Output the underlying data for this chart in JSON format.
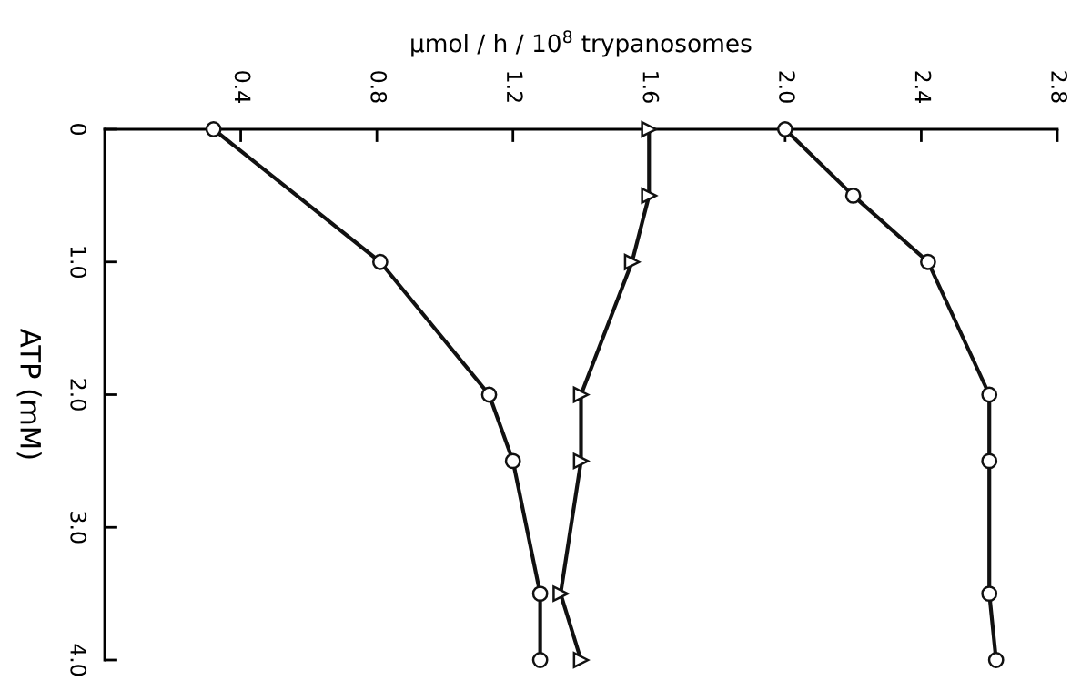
{
  "chart_data": {
    "type": "line",
    "orientation": "horizontal",
    "xlabel": "μmol / h / 10$^{8}$ trypanosomes",
    "ylabel": "ATP (mM)",
    "xlim": [
      0,
      2.8
    ],
    "xticks": [
      0.4,
      0.8,
      1.2,
      1.6,
      {
        "value": 2.0,
        "label": "2.0"
      },
      2.4,
      2.8
    ],
    "ylim": [
      4.0,
      0
    ],
    "yticks": [
      0,
      {
        "value": 1,
        "label": "1.0"
      },
      {
        "value": 2,
        "label": "2.0"
      },
      {
        "value": 3,
        "label": "3.0"
      },
      {
        "value": 4,
        "label": "4.0"
      }
    ],
    "grid": false,
    "legend": false,
    "line_style": "solid",
    "series": [
      {
        "color": "#111111",
        "marker": "circle",
        "x": [
          0,
          1,
          2,
          2.5,
          3.5,
          4
        ],
        "values": [
          0.32,
          0.81,
          1.13,
          1.2,
          1.28,
          1.28
        ]
      },
      {
        "color": "#111111",
        "marker": "triangle",
        "x": [
          0,
          0.5,
          1,
          2,
          2.5,
          3.5,
          4
        ],
        "values": [
          1.6,
          1.6,
          1.55,
          1.4,
          1.4,
          1.34,
          1.4
        ]
      },
      {
        "color": "#111111",
        "marker": "circle",
        "x": [
          0,
          0.5,
          1,
          2,
          2.5,
          3.5,
          4
        ],
        "values": [
          2.0,
          2.2,
          2.42,
          2.6,
          2.6,
          2.6,
          2.62
        ]
      }
    ]
  }
}
